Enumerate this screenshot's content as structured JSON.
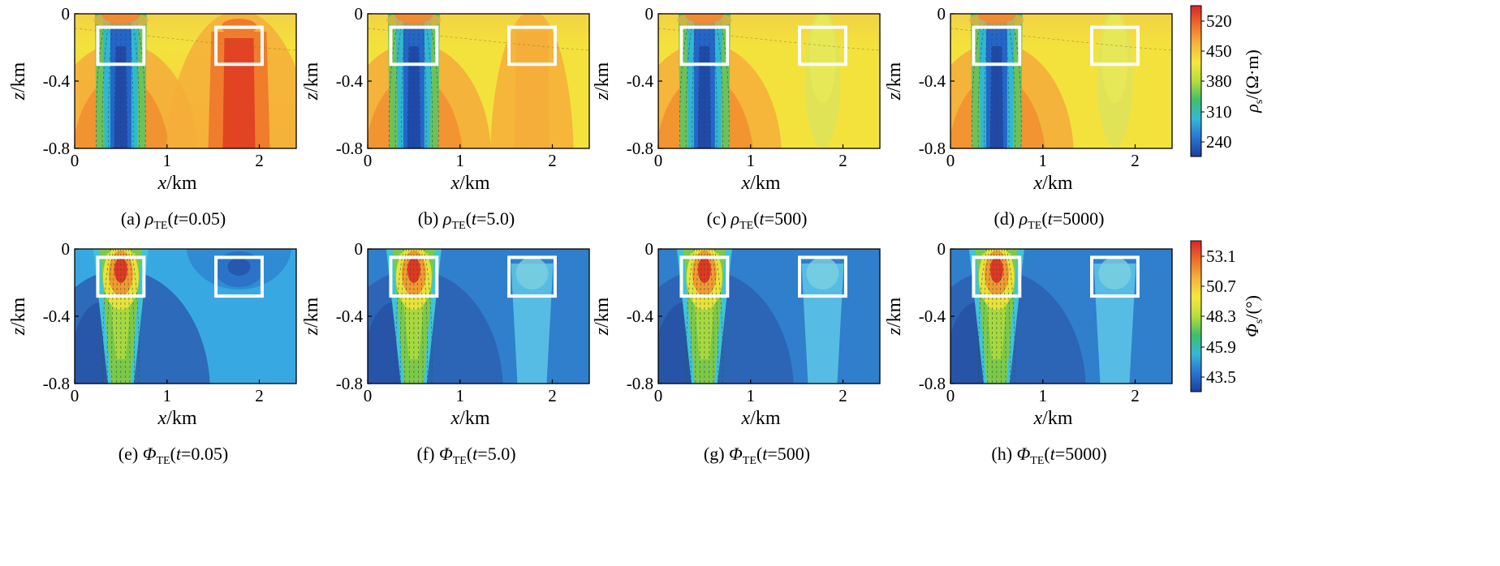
{
  "figure": {
    "rows": [
      {
        "quantity": "resistivity",
        "x_axis_label": "x/km",
        "z_axis_label": "z/km",
        "colorbar": {
          "label": "ρs/(Ω·m)",
          "ticks": [
            "520",
            "450",
            "380",
            "310",
            "240"
          ],
          "colors": [
            "#1c3f9c",
            "#2a74d2",
            "#33b8d8",
            "#3fbf6a",
            "#b7dd3a",
            "#f4e93a",
            "#f6b33a",
            "#ef6b2a",
            "#d8262a"
          ]
        },
        "panels": [
          {
            "caption": "(a) ρTE(t=0.05)"
          },
          {
            "caption": "(b) ρTE(t=5.0)"
          },
          {
            "caption": "(c) ρTE(t=500)"
          },
          {
            "caption": "(d) ρTE(t=5000)"
          }
        ]
      },
      {
        "quantity": "phase",
        "x_axis_label": "x/km",
        "z_axis_label": "z/km",
        "colorbar": {
          "label": "Φs/(°)",
          "ticks": [
            "53.1",
            "50.7",
            "48.3",
            "45.9",
            "43.5"
          ],
          "colors": [
            "#1c3f9c",
            "#2a74d2",
            "#33b8d8",
            "#3fbf6a",
            "#b7dd3a",
            "#f4e93a",
            "#f6b33a",
            "#ef6b2a",
            "#d8262a"
          ]
        },
        "panels": [
          {
            "caption": "(e) ΦTE(t=0.05)"
          },
          {
            "caption": "(f) ΦTE(t=5.0)"
          },
          {
            "caption": "(g) ΦTE(t=500)"
          },
          {
            "caption": "(h) ΦTE(t=5000)"
          }
        ]
      }
    ]
  },
  "chart_data": [
    {
      "type": "heatmap",
      "title": "(a) ρTE(t=0.05)",
      "xlabel": "x/km",
      "ylabel": "z/km",
      "xlim": [
        0,
        2.4
      ],
      "ylim": [
        -0.8,
        0
      ],
      "x_ticks": [
        "0",
        "1",
        "2"
      ],
      "y_ticks": [
        "0",
        "-0.4",
        "-0.8"
      ],
      "anomalies": [
        {
          "x_center": 0.5,
          "type": "low",
          "strength": 1.0
        },
        {
          "x_center": 1.78,
          "type": "high",
          "strength": 1.0
        }
      ],
      "boxes": [
        {
          "x": [
            0.25,
            0.75
          ],
          "z": [
            -0.3,
            -0.08
          ]
        },
        {
          "x": [
            1.53,
            2.03
          ],
          "z": [
            -0.3,
            -0.08
          ]
        }
      ]
    },
    {
      "type": "heatmap",
      "title": "(b) ρTE(t=5.0)",
      "xlabel": "x/km",
      "ylabel": "z/km",
      "xlim": [
        0,
        2.4
      ],
      "ylim": [
        -0.8,
        0
      ],
      "x_ticks": [
        "0",
        "1",
        "2"
      ],
      "y_ticks": [
        "0",
        "-0.4",
        "-0.8"
      ],
      "anomalies": [
        {
          "x_center": 0.5,
          "type": "low",
          "strength": 1.0
        },
        {
          "x_center": 1.78,
          "type": "high",
          "strength": 0.45
        }
      ],
      "boxes": [
        {
          "x": [
            0.25,
            0.75
          ],
          "z": [
            -0.3,
            -0.08
          ]
        },
        {
          "x": [
            1.53,
            2.03
          ],
          "z": [
            -0.3,
            -0.08
          ]
        }
      ]
    },
    {
      "type": "heatmap",
      "title": "(c) ρTE(t=500)",
      "xlabel": "x/km",
      "ylabel": "z/km",
      "xlim": [
        0,
        2.4
      ],
      "ylim": [
        -0.8,
        0
      ],
      "x_ticks": [
        "0",
        "1",
        "2"
      ],
      "y_ticks": [
        "0",
        "-0.4",
        "-0.8"
      ],
      "anomalies": [
        {
          "x_center": 0.5,
          "type": "low",
          "strength": 1.0
        },
        {
          "x_center": 1.78,
          "type": "low",
          "strength": 0.2
        }
      ],
      "boxes": [
        {
          "x": [
            0.25,
            0.75
          ],
          "z": [
            -0.3,
            -0.08
          ]
        },
        {
          "x": [
            1.53,
            2.03
          ],
          "z": [
            -0.3,
            -0.08
          ]
        }
      ]
    },
    {
      "type": "heatmap",
      "title": "(d) ρTE(t=5000)",
      "xlabel": "x/km",
      "ylabel": "z/km",
      "xlim": [
        0,
        2.4
      ],
      "ylim": [
        -0.8,
        0
      ],
      "x_ticks": [
        "0",
        "1",
        "2"
      ],
      "y_ticks": [
        "0",
        "-0.4",
        "-0.8"
      ],
      "anomalies": [
        {
          "x_center": 0.5,
          "type": "low",
          "strength": 1.0
        },
        {
          "x_center": 1.78,
          "type": "low",
          "strength": 0.3
        }
      ],
      "boxes": [
        {
          "x": [
            0.25,
            0.75
          ],
          "z": [
            -0.3,
            -0.08
          ]
        },
        {
          "x": [
            1.53,
            2.03
          ],
          "z": [
            -0.3,
            -0.08
          ]
        }
      ]
    },
    {
      "type": "heatmap",
      "title": "(e) ΦTE(t=0.05)",
      "xlabel": "x/km",
      "ylabel": "z/km",
      "xlim": [
        0,
        2.4
      ],
      "ylim": [
        -0.8,
        0
      ],
      "x_ticks": [
        "0",
        "1",
        "2"
      ],
      "y_ticks": [
        "0",
        "-0.4",
        "-0.8"
      ],
      "anomalies": [
        {
          "x_center": 0.5,
          "type": "high",
          "strength": 1.0
        },
        {
          "x_center": 1.78,
          "type": "low",
          "strength": 0.4
        }
      ],
      "boxes": [
        {
          "x": [
            0.25,
            0.75
          ],
          "z": [
            -0.28,
            -0.05
          ]
        },
        {
          "x": [
            1.53,
            2.03
          ],
          "z": [
            -0.28,
            -0.05
          ]
        }
      ]
    },
    {
      "type": "heatmap",
      "title": "(f) ΦTE(t=5.0)",
      "xlabel": "x/km",
      "ylabel": "z/km",
      "xlim": [
        0,
        2.4
      ],
      "ylim": [
        -0.8,
        0
      ],
      "x_ticks": [
        "0",
        "1",
        "2"
      ],
      "y_ticks": [
        "0",
        "-0.4",
        "-0.8"
      ],
      "anomalies": [
        {
          "x_center": 0.5,
          "type": "high",
          "strength": 1.0
        },
        {
          "x_center": 1.78,
          "type": "high",
          "strength": 0.35
        }
      ],
      "boxes": [
        {
          "x": [
            0.25,
            0.75
          ],
          "z": [
            -0.28,
            -0.05
          ]
        },
        {
          "x": [
            1.53,
            2.03
          ],
          "z": [
            -0.28,
            -0.05
          ]
        }
      ]
    },
    {
      "type": "heatmap",
      "title": "(g) ΦTE(t=500)",
      "xlabel": "x/km",
      "ylabel": "z/km",
      "xlim": [
        0,
        2.4
      ],
      "ylim": [
        -0.8,
        0
      ],
      "x_ticks": [
        "0",
        "1",
        "2"
      ],
      "y_ticks": [
        "0",
        "-0.4",
        "-0.8"
      ],
      "anomalies": [
        {
          "x_center": 0.5,
          "type": "high",
          "strength": 1.0
        },
        {
          "x_center": 1.78,
          "type": "high",
          "strength": 0.3
        }
      ],
      "boxes": [
        {
          "x": [
            0.25,
            0.75
          ],
          "z": [
            -0.28,
            -0.05
          ]
        },
        {
          "x": [
            1.53,
            2.03
          ],
          "z": [
            -0.28,
            -0.05
          ]
        }
      ]
    },
    {
      "type": "heatmap",
      "title": "(h) ΦTE(t=5000)",
      "xlabel": "x/km",
      "ylabel": "z/km",
      "xlim": [
        0,
        2.4
      ],
      "ylim": [
        -0.8,
        0
      ],
      "x_ticks": [
        "0",
        "1",
        "2"
      ],
      "y_ticks": [
        "0",
        "-0.4",
        "-0.8"
      ],
      "anomalies": [
        {
          "x_center": 0.5,
          "type": "high",
          "strength": 1.0
        },
        {
          "x_center": 1.78,
          "type": "high",
          "strength": 0.3
        }
      ],
      "boxes": [
        {
          "x": [
            0.25,
            0.75
          ],
          "z": [
            -0.28,
            -0.05
          ]
        },
        {
          "x": [
            1.53,
            2.03
          ],
          "z": [
            -0.28,
            -0.05
          ]
        }
      ]
    }
  ]
}
